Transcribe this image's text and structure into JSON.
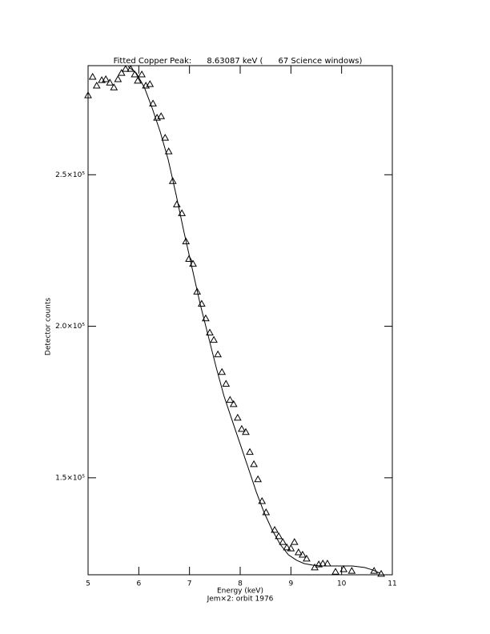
{
  "chart_data": {
    "type": "scatter",
    "title": "Fitted Copper Peak:      8.63087 keV (      67 Science windows)",
    "x_label": "Energy (keV)",
    "subtitle": "Jem×2: orbit 1976",
    "y_label": "Detector counts",
    "xlim": [
      5,
      11
    ],
    "xticks": [
      5,
      6,
      7,
      8,
      9,
      10,
      11
    ],
    "ylim": [
      118000,
      286000
    ],
    "yticks": [
      {
        "value": 150000,
        "label": "1.5×10⁵"
      },
      {
        "value": 200000,
        "label": "2.0×10⁵"
      },
      {
        "value": 250000,
        "label": "2.5×10⁵"
      }
    ],
    "series": [
      {
        "style": "triangle",
        "color": "#000000",
        "x": [
          5.0,
          5.09,
          5.17,
          5.27,
          5.35,
          5.43,
          5.51,
          5.59,
          5.66,
          5.74,
          5.84,
          5.92,
          5.98,
          6.06,
          6.14,
          6.22,
          6.28,
          6.36,
          6.44,
          6.52,
          6.59,
          6.67,
          6.75,
          6.85,
          6.93,
          6.99,
          7.07,
          7.15,
          7.24,
          7.32,
          7.4,
          7.48,
          7.56,
          7.64,
          7.72,
          7.8,
          7.87,
          7.95,
          8.03,
          8.11,
          8.19,
          8.27,
          8.35,
          8.43,
          8.51,
          8.68,
          8.76,
          8.84,
          8.92,
          9.0,
          9.07,
          9.15,
          9.23,
          9.31,
          9.47,
          9.55,
          9.63,
          9.72,
          9.88,
          10.04,
          10.2,
          10.64,
          10.78
        ],
        "values": [
          276200,
          282300,
          279400,
          281200,
          281500,
          280400,
          278800,
          281500,
          283600,
          284900,
          284900,
          283100,
          281000,
          283100,
          279400,
          279900,
          273500,
          268800,
          269300,
          262200,
          257700,
          247900,
          240200,
          237300,
          228000,
          222200,
          220600,
          211400,
          207400,
          202600,
          197900,
          195500,
          190700,
          184900,
          181000,
          175700,
          174300,
          169800,
          166100,
          165100,
          158500,
          154500,
          149500,
          142300,
          138600,
          132800,
          130700,
          128800,
          127000,
          126700,
          128800,
          125400,
          124600,
          123300,
          120400,
          121400,
          121700,
          121700,
          119000,
          119800,
          119300,
          119300,
          118300
        ]
      },
      {
        "style": "line",
        "color": "#000000",
        "x": [
          5.79,
          5.95,
          6.11,
          6.26,
          6.42,
          6.58,
          6.74,
          6.89,
          7.05,
          7.21,
          7.37,
          7.53,
          7.68,
          7.84,
          8.0,
          8.16,
          8.32,
          8.47,
          8.63,
          8.79,
          8.95,
          9.11,
          9.26,
          9.42,
          9.58,
          9.9,
          10.21,
          10.45,
          10.61,
          10.76
        ],
        "values": [
          285700,
          283600,
          278800,
          272200,
          264300,
          255000,
          243100,
          231200,
          219300,
          207400,
          196800,
          186200,
          177000,
          169000,
          161100,
          153200,
          145200,
          138600,
          132800,
          128000,
          124600,
          122800,
          121700,
          121200,
          120900,
          120900,
          120900,
          120400,
          119600,
          118500
        ]
      }
    ]
  }
}
